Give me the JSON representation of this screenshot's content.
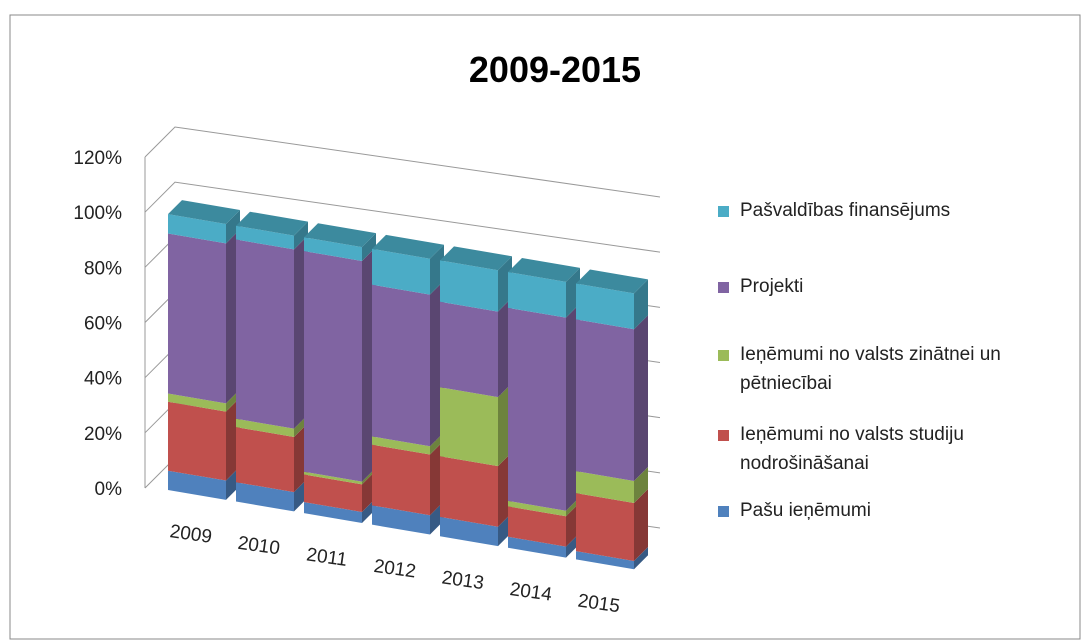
{
  "chart_data": {
    "type": "bar",
    "stacked": true,
    "title": "2009-2015",
    "categories": [
      "2009",
      "2010",
      "2011",
      "2012",
      "2013",
      "2014",
      "2015"
    ],
    "series": [
      {
        "name": "Pašu ieņēmumi",
        "color": "#4f81bd",
        "values": [
          7,
          7,
          4,
          7,
          7,
          4,
          3
        ]
      },
      {
        "name": "Ieņēmumi no valsts studiju nodrošināšanai",
        "color": "#c0504d",
        "values": [
          25,
          20,
          10,
          22,
          22,
          11,
          21
        ]
      },
      {
        "name": "Ieņēmumi no valsts zinātnei un pētniecībai",
        "color": "#9bbb59",
        "values": [
          3,
          3,
          1,
          3,
          25,
          2,
          8
        ]
      },
      {
        "name": "Projekti",
        "color": "#8064a2",
        "values": [
          58,
          65,
          80,
          55,
          31,
          70,
          55
        ]
      },
      {
        "name": "Pašvaldības finansējums",
        "color": "#4bacc6",
        "values": [
          7,
          5,
          5,
          13,
          15,
          13,
          13
        ]
      }
    ],
    "ylim": [
      0,
      120
    ],
    "yticks": [
      {
        "value": 0,
        "label": "0%"
      },
      {
        "value": 20,
        "label": "20%"
      },
      {
        "value": 40,
        "label": "40%"
      },
      {
        "value": 60,
        "label": "60%"
      },
      {
        "value": 80,
        "label": "80%"
      },
      {
        "value": 100,
        "label": "100%"
      },
      {
        "value": 120,
        "label": "120%"
      }
    ],
    "grid": true,
    "legend": "right"
  }
}
